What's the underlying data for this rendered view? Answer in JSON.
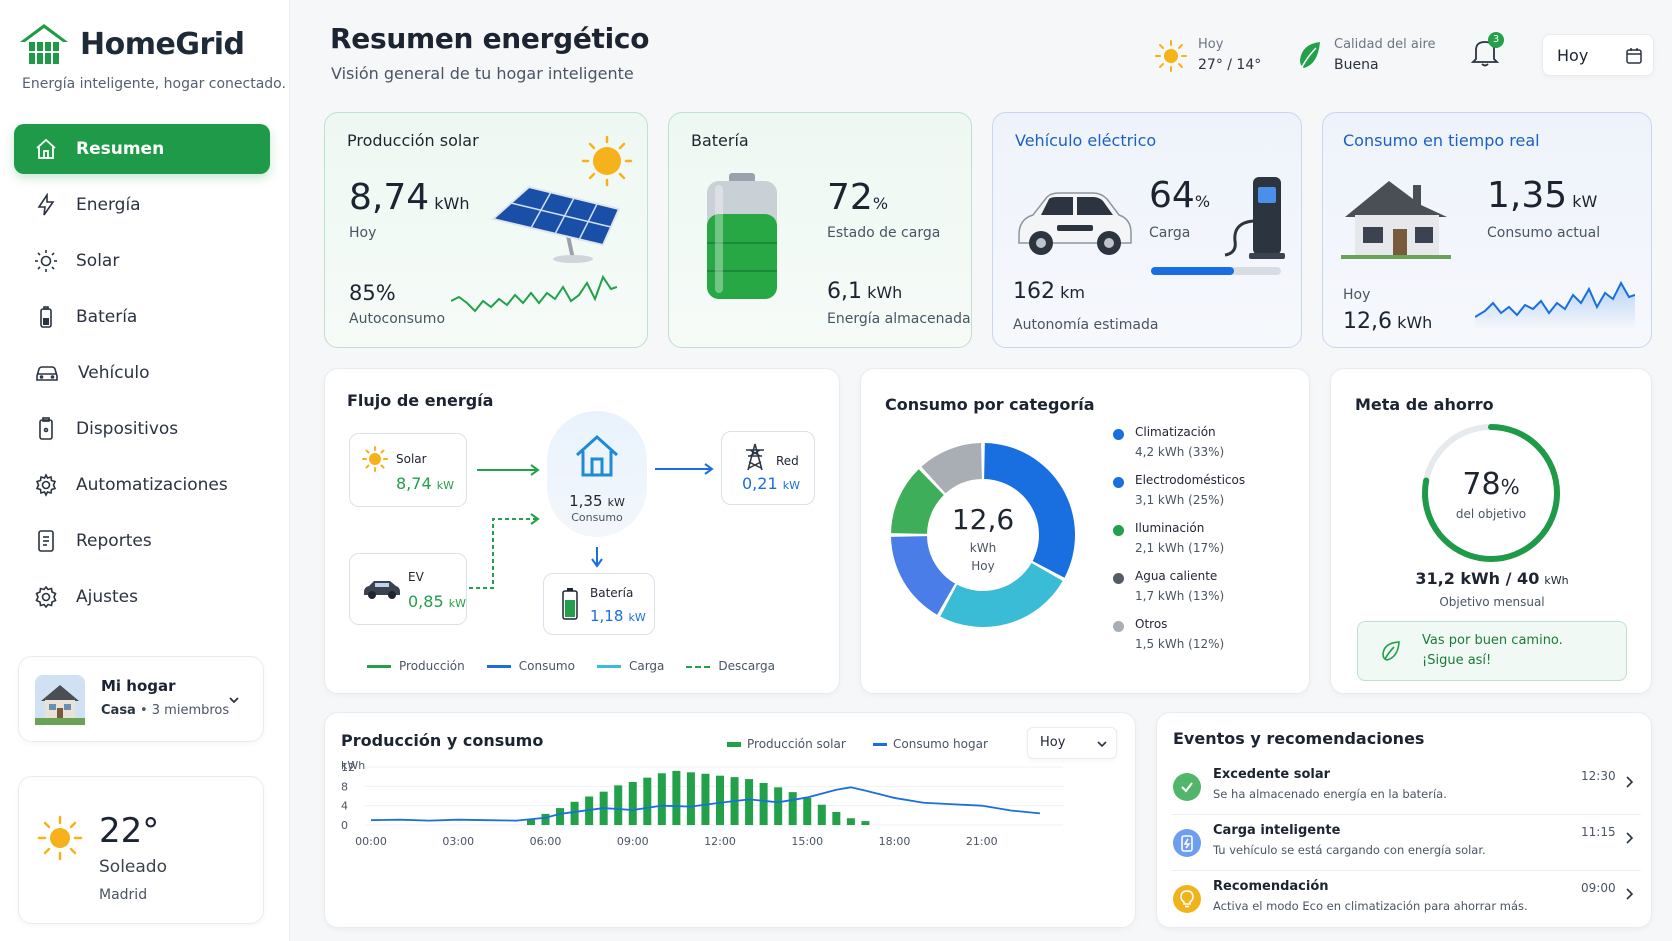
{
  "brand": {
    "name": "HomeGrid",
    "tagline": "Energía inteligente, hogar conectado."
  },
  "nav": [
    {
      "label": "Resumen",
      "icon": "home-icon",
      "active": true
    },
    {
      "label": "Energía",
      "icon": "bolt-icon"
    },
    {
      "label": "Solar",
      "icon": "sun-icon"
    },
    {
      "label": "Batería",
      "icon": "battery-icon"
    },
    {
      "label": "Vehículo",
      "icon": "car-icon"
    },
    {
      "label": "Dispositivos",
      "icon": "device-icon"
    },
    {
      "label": "Automatizaciones",
      "icon": "automation-gear-icon"
    },
    {
      "label": "Reportes",
      "icon": "report-icon"
    },
    {
      "label": "Ajustes",
      "icon": "settings-gear-icon"
    }
  ],
  "home_select": {
    "name": "Mi hogar",
    "type": "Casa",
    "members": "3 miembros"
  },
  "weather_card": {
    "temp": "22°",
    "condition": "Soleado",
    "city": "Madrid"
  },
  "header": {
    "title": "Resumen energético",
    "subtitle": "Visión general de tu hogar inteligente",
    "weather_label": "Hoy",
    "weather_value": "27° / 14°",
    "air_label": "Calidad del aire",
    "air_value": "Buena",
    "notif_count": "3",
    "date_select": "Hoy"
  },
  "solar": {
    "title": "Producción solar",
    "value": "8,74",
    "unit": "kWh",
    "label": "Hoy",
    "self_pct": "85%",
    "self_label": "Autoconsumo"
  },
  "battery": {
    "title": "Batería",
    "pct": "72",
    "pct_unit": "%",
    "pct_label": "Estado de carga",
    "stored": "6,1",
    "stored_unit": "kWh",
    "stored_label": "Energía almacenada",
    "level": 0.72
  },
  "ev": {
    "title": "Vehículo eléctrico",
    "pct": "64",
    "pct_unit": "%",
    "pct_label": "Carga",
    "range": "162",
    "range_unit": "km",
    "range_label": "Autonomía estimada",
    "level": 0.64
  },
  "realtime": {
    "title": "Consumo en tiempo real",
    "value": "1,35",
    "unit": "kW",
    "label": "Consumo actual",
    "today_label": "Hoy",
    "today_value": "12,6",
    "today_unit": "kWh"
  },
  "flow": {
    "title": "Flujo de energía",
    "solar": {
      "label": "Solar",
      "value": "8,74",
      "unit": "kW"
    },
    "home": {
      "value": "1,35",
      "unit": "kW",
      "label": "Consumo"
    },
    "grid": {
      "label": "Red",
      "value": "0,21",
      "unit": "kW"
    },
    "ev": {
      "label": "EV",
      "value": "0,85",
      "unit": "kW"
    },
    "battery": {
      "label": "Batería",
      "value": "1,18",
      "unit": "kW"
    },
    "legend": [
      "Producción",
      "Consumo",
      "Carga",
      "Descarga"
    ]
  },
  "category": {
    "title": "Consumo por categoría",
    "center_value": "12,6",
    "center_unit": "kWh",
    "center_label": "Hoy",
    "items": [
      {
        "name": "Climatización",
        "detail": "4,2 kWh (33%)",
        "value": 33,
        "color": "#1a6fe0"
      },
      {
        "name": "Electrodomésticos",
        "detail": "3,1 kWh (25%)",
        "value": 25,
        "color": "#3bbcd6"
      },
      {
        "name": "Iluminación",
        "detail": "2,1 kWh (17%)",
        "value": 17,
        "color": "#4a7de8"
      },
      {
        "name": "Agua caliente",
        "detail": "1,7 kWh (13%)",
        "value": 13,
        "color": "#3fae5a"
      },
      {
        "name": "Otros",
        "detail": "1,5 kWh (12%)",
        "value": 12,
        "color": "#a9aeb4"
      }
    ],
    "legend_colors": [
      "#1a6fe0",
      "#1a6fe0",
      "#22a04a",
      "#555c66",
      "#a9aeb4"
    ]
  },
  "goal": {
    "title": "Meta de ahorro",
    "pct": "78",
    "pct_unit": "%",
    "pct_label": "del objetivo",
    "progress": 0.78,
    "value": "31,2 kWh / 40",
    "value_unit": "kWh",
    "label": "Objetivo mensual",
    "message_1": "Vas por buen camino.",
    "message_2": "¡Sigue así!"
  },
  "production_chart": {
    "title": "Producción y consumo",
    "legend_prod": "Producción solar",
    "legend_cons": "Consumo hogar",
    "select": "Hoy",
    "chart_data": {
      "type": "bar",
      "ylabel": "kWh",
      "yticks": [
        "12",
        "8",
        "4",
        "0"
      ],
      "xticks": [
        "00:00",
        "03:00",
        "06:00",
        "09:00",
        "12:00",
        "15:00",
        "18:00",
        "21:00"
      ],
      "ylim": [
        0,
        12
      ],
      "series": [
        {
          "name": "Producción solar",
          "type": "bar",
          "x": [
            5.5,
            6,
            6.5,
            7,
            7.5,
            8,
            8.5,
            9,
            9.5,
            10,
            10.5,
            11,
            11.5,
            12,
            12.5,
            13,
            13.5,
            14,
            14.5,
            15,
            15.5,
            16,
            16.5,
            17
          ],
          "values": [
            1.2,
            2.3,
            3.5,
            4.8,
            5.9,
            6.9,
            8.2,
            8.9,
            9.8,
            10.7,
            11.2,
            10.9,
            10.6,
            10.2,
            9.9,
            9.5,
            8.7,
            7.8,
            6.8,
            5.6,
            4.2,
            2.7,
            1.4,
            0.8
          ]
        },
        {
          "name": "Consumo hogar",
          "type": "line",
          "x": [
            0,
            1,
            2,
            3,
            4,
            5,
            6,
            6.5,
            7,
            8,
            9,
            10,
            11,
            12,
            13,
            14,
            15,
            16,
            16.5,
            17,
            18,
            19,
            20,
            21,
            22,
            23
          ],
          "values": [
            1.0,
            1.1,
            0.9,
            1.1,
            1.0,
            0.9,
            1.5,
            2.3,
            2.7,
            3.5,
            3.1,
            4.0,
            3.8,
            4.6,
            5.3,
            4.7,
            5.7,
            7.3,
            7.8,
            7.1,
            5.6,
            4.6,
            4.3,
            4.0,
            3.0,
            2.4
          ]
        }
      ]
    }
  },
  "events": {
    "title": "Eventos y recomendaciones",
    "items": [
      {
        "title": "Excedente solar",
        "desc": "Se ha almacenado energía en la batería.",
        "time": "12:30",
        "color": "#3fae5a",
        "icon": "check-icon"
      },
      {
        "title": "Carga inteligente",
        "desc": "Tu vehículo se está cargando con energía solar.",
        "time": "11:15",
        "color": "#4a7de8",
        "icon": "battery-charge-icon"
      },
      {
        "title": "Recomendación",
        "desc": "Activa el modo Eco en climatización para ahorrar más.",
        "time": "09:00",
        "color": "#f0b31c",
        "icon": "bulb-icon"
      }
    ]
  }
}
